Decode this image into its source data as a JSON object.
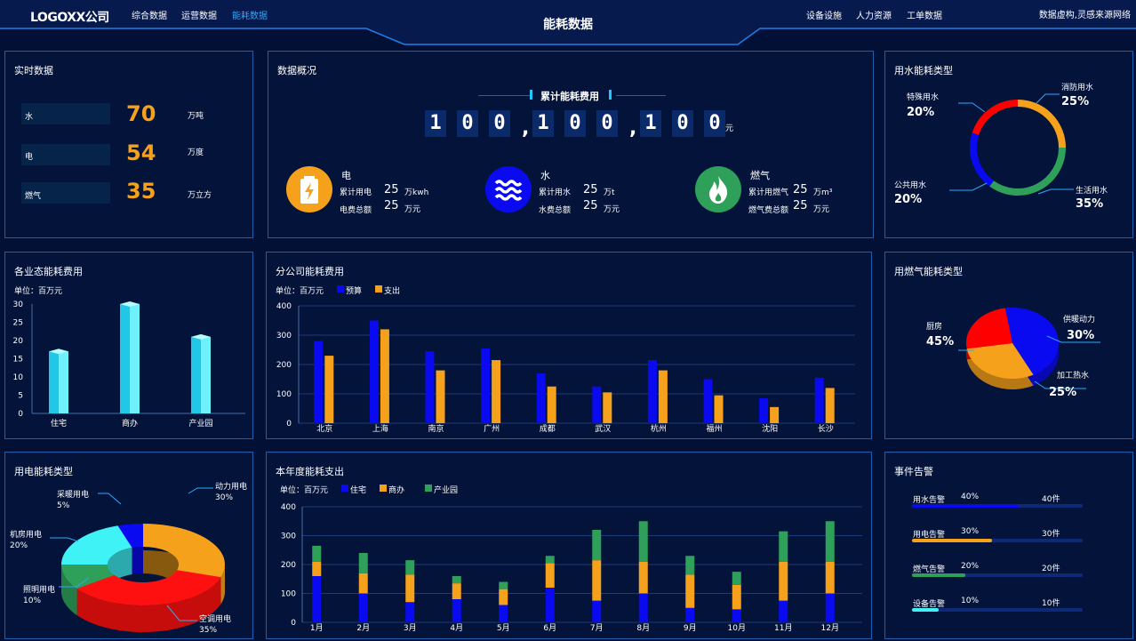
{
  "header": {
    "logo": "LOGOXX公司",
    "nav_left": [
      "综合数据",
      "运营数据",
      "能耗数据"
    ],
    "nav_right": [
      "设备设施",
      "人力资源",
      "工单数据"
    ],
    "title": "能耗数据",
    "source": "数据虚构,灵感来源网络",
    "active_nav": "能耗数据"
  },
  "realtime": {
    "title": "实时数据",
    "rows": [
      {
        "label": "水",
        "value": "70",
        "unit": "万吨"
      },
      {
        "label": "电",
        "value": "54",
        "unit": "万度"
      },
      {
        "label": "燃气",
        "value": "35",
        "unit": "万立方"
      }
    ]
  },
  "overview": {
    "title": "数据概况",
    "total_label": "累计能耗费用",
    "digits": [
      "1",
      "0",
      "0",
      ",",
      "1",
      "0",
      "0",
      ",",
      "1",
      "0",
      "0"
    ],
    "total_unit": "元",
    "items": [
      {
        "name": "电",
        "icon": "battery-icon",
        "color": "#f5a11c",
        "line1_label": "累计用电",
        "line1_value": "25",
        "line1_unit": "万kwh",
        "line2_label": "电费总额",
        "line2_value": "25",
        "line2_unit": "万元"
      },
      {
        "name": "水",
        "icon": "water-icon",
        "color": "#0a0af0",
        "line1_label": "累计用水",
        "line1_value": "25",
        "line1_unit": "万t",
        "line2_label": "水费总额",
        "line2_value": "25",
        "line2_unit": "万元"
      },
      {
        "name": "燃气",
        "icon": "flame-icon",
        "color": "#2ea05a",
        "line1_label": "累计用燃气",
        "line1_value": "25",
        "line1_unit": "万m³",
        "line2_label": "燃气费总额",
        "line2_value": "25",
        "line2_unit": "万元"
      }
    ]
  },
  "water_type": {
    "title": "用水能耗类型",
    "slices": [
      {
        "name": "消防用水",
        "value": 25,
        "label": "25%",
        "color": "#f5a11c"
      },
      {
        "name": "生活用水",
        "value": 35,
        "label": "35%",
        "color": "#2ea05a"
      },
      {
        "name": "公共用水",
        "value": 20,
        "label": "20%",
        "color": "#0a0af0"
      },
      {
        "name": "特殊用水",
        "value": 20,
        "label": "20%",
        "color": "#ff0000"
      }
    ]
  },
  "business_cost": {
    "title": "各业态能耗费用",
    "unit": "单位：百万元",
    "chart_data": {
      "type": "bar",
      "categories": [
        "住宅",
        "商办",
        "产业园"
      ],
      "values": [
        17,
        30,
        21
      ],
      "ylim": [
        0,
        30
      ],
      "yticks": [
        0,
        5,
        10,
        15,
        20,
        25,
        30
      ]
    }
  },
  "branch_cost": {
    "title": "分公司能耗费用",
    "unit": "单位：百万元",
    "chart_data": {
      "type": "bar",
      "categories": [
        "北京",
        "上海",
        "南京",
        "广州",
        "成都",
        "武汉",
        "杭州",
        "福州",
        "沈阳",
        "长沙"
      ],
      "series": [
        {
          "name": "预算",
          "color": "#0a0af0",
          "values": [
            280,
            350,
            245,
            255,
            170,
            125,
            215,
            150,
            85,
            155
          ]
        },
        {
          "name": "支出",
          "color": "#f5a11c",
          "values": [
            230,
            320,
            180,
            215,
            125,
            105,
            180,
            95,
            55,
            120
          ]
        }
      ],
      "ylim": [
        0,
        400
      ],
      "yticks": [
        0,
        100,
        200,
        300,
        400
      ]
    }
  },
  "gas_type": {
    "title": "用燃气能耗类型",
    "slices": [
      {
        "name": "厨房",
        "value": 45,
        "label": "45%",
        "color": "#0a0af0"
      },
      {
        "name": "供暖动力",
        "value": 30,
        "label": "30%",
        "color": "#f5a11c"
      },
      {
        "name": "加工热水",
        "value": 25,
        "label": "25%",
        "color": "#ff0000"
      }
    ]
  },
  "power_type": {
    "title": "用电能耗类型",
    "slices": [
      {
        "name": "动力用电",
        "value": 30,
        "label": "30%",
        "color": "#f5a11c"
      },
      {
        "name": "空调用电",
        "value": 35,
        "label": "35%",
        "color": "#ff1010"
      },
      {
        "name": "照明用电",
        "value": 10,
        "label": "10%",
        "color": "#2ea05a"
      },
      {
        "name": "机房用电",
        "value": 20,
        "label": "20%",
        "color": "#3ef2f5"
      },
      {
        "name": "采暖用电",
        "value": 5,
        "label": "5%",
        "color": "#0a0af0"
      }
    ]
  },
  "annual_cost": {
    "title": "本年度能耗支出",
    "unit": "单位：百万元",
    "chart_data": {
      "type": "bar",
      "stacked": true,
      "categories": [
        "1月",
        "2月",
        "3月",
        "4月",
        "5月",
        "6月",
        "7月",
        "8月",
        "9月",
        "10月",
        "11月",
        "12月"
      ],
      "series": [
        {
          "name": "住宅",
          "color": "#0a0af0",
          "values": [
            160,
            100,
            70,
            80,
            60,
            120,
            75,
            100,
            50,
            45,
            75,
            100
          ]
        },
        {
          "name": "商办",
          "color": "#f5a11c",
          "values": [
            50,
            70,
            95,
            55,
            55,
            85,
            140,
            110,
            115,
            85,
            135,
            110
          ]
        },
        {
          "name": "产业园",
          "color": "#2ea05a",
          "values": [
            55,
            70,
            50,
            25,
            25,
            25,
            105,
            140,
            65,
            45,
            105,
            140
          ]
        }
      ],
      "ylim": [
        0,
        400
      ],
      "yticks": [
        0,
        100,
        200,
        300,
        400
      ]
    }
  },
  "alarms": {
    "title": "事件告警",
    "items": [
      {
        "name": "用水告警",
        "percent": "40%",
        "count": "40件",
        "ratio": 0.4,
        "color": "#0a0af0"
      },
      {
        "name": "用电告警",
        "percent": "30%",
        "count": "30件",
        "ratio": 0.3,
        "color": "#f5a11c"
      },
      {
        "name": "燃气告警",
        "percent": "20%",
        "count": "20件",
        "ratio": 0.2,
        "color": "#2ea05a"
      },
      {
        "name": "设备告警",
        "percent": "10%",
        "count": "10件",
        "ratio": 0.1,
        "color": "#3ef2f5"
      }
    ]
  }
}
